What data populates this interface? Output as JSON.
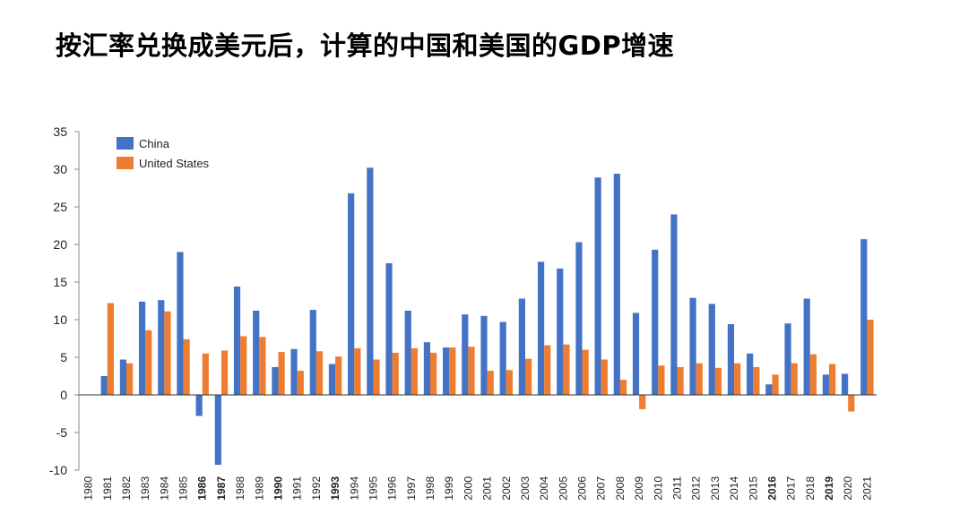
{
  "page": {
    "title": "按汇率兑换成美元后，计算的中国和美国的GDP增速"
  },
  "chart_data": {
    "type": "bar",
    "title": "按汇率兑换成美元后，计算的中国和美国的GDP增速",
    "xlabel": "",
    "ylabel": "",
    "ylim": [
      -10,
      35
    ],
    "yticks": [
      35,
      30,
      25,
      20,
      15,
      10,
      5,
      0,
      -5,
      -10
    ],
    "legend_position": "top-left",
    "highlight_color": "#C0274A",
    "categories": [
      "1980",
      "1981",
      "1982",
      "1983",
      "1984",
      "1985",
      "1986",
      "1987",
      "1988",
      "1989",
      "1990",
      "1991",
      "1992",
      "1993",
      "1994",
      "1995",
      "1996",
      "1997",
      "1998",
      "1999",
      "2000",
      "2001",
      "2002",
      "2003",
      "2004",
      "2005",
      "2006",
      "2007",
      "2008",
      "2009",
      "2010",
      "2011",
      "2012",
      "2013",
      "2014",
      "2015",
      "2016",
      "2017",
      "2018",
      "2019",
      "2020",
      "2021"
    ],
    "highlighted_categories": [
      "1986",
      "1987",
      "1990",
      "1993",
      "2016",
      "2019"
    ],
    "series": [
      {
        "name": "China",
        "color": "#4472C4",
        "values": [
          null,
          2.5,
          4.7,
          12.4,
          12.6,
          19.0,
          -2.8,
          -9.3,
          14.4,
          11.2,
          3.7,
          6.1,
          11.3,
          4.1,
          26.8,
          30.2,
          17.5,
          11.2,
          7.0,
          6.3,
          10.7,
          10.5,
          9.7,
          12.8,
          17.7,
          16.8,
          20.3,
          28.9,
          29.4,
          10.9,
          19.3,
          24.0,
          12.9,
          12.1,
          9.4,
          5.5,
          1.4,
          9.5,
          12.8,
          2.7,
          2.8,
          20.7
        ]
      },
      {
        "name": "United States",
        "color": "#ED7D31",
        "values": [
          null,
          12.2,
          4.2,
          8.6,
          11.1,
          7.4,
          5.5,
          5.9,
          7.8,
          7.7,
          5.7,
          3.2,
          5.8,
          5.1,
          6.2,
          4.7,
          5.6,
          6.2,
          5.6,
          6.3,
          6.4,
          3.2,
          3.3,
          4.8,
          6.6,
          6.7,
          6.0,
          4.7,
          2.0,
          -1.9,
          3.9,
          3.7,
          4.2,
          3.6,
          4.2,
          3.7,
          2.7,
          4.2,
          5.4,
          4.1,
          -2.2,
          10.0
        ]
      }
    ]
  }
}
